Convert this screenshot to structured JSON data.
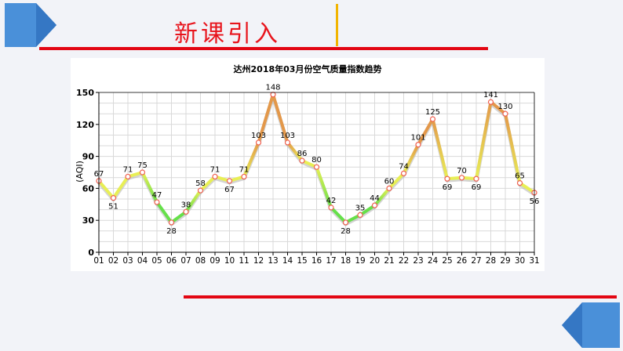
{
  "slide": {
    "title": "新课引入",
    "colors": {
      "title": "#e8141c",
      "rule": "#e30613",
      "divider": "#f2b400",
      "corner": "#4a90d9"
    }
  },
  "chart_data": {
    "type": "line",
    "title": "达州2018年03月份空气质量指数趋势",
    "xlabel": "",
    "ylabel": "(AQI)",
    "ylim": [
      0,
      150
    ],
    "yticks": [
      0,
      30,
      60,
      90,
      120,
      150
    ],
    "grid": true,
    "categories": [
      "01",
      "02",
      "03",
      "04",
      "05",
      "06",
      "07",
      "08",
      "09",
      "10",
      "11",
      "12",
      "13",
      "14",
      "15",
      "16",
      "17",
      "18",
      "19",
      "20",
      "21",
      "22",
      "23",
      "24",
      "25",
      "26",
      "27",
      "28",
      "29",
      "30",
      "31"
    ],
    "series": [
      {
        "values": [
          67,
          51,
          71,
          75,
          47,
          28,
          38,
          58,
          71,
          67,
          71,
          103,
          148,
          103,
          86,
          80,
          42,
          28,
          35,
          44,
          60,
          74,
          101,
          125,
          69,
          70,
          69,
          141,
          130,
          65,
          56
        ]
      }
    ],
    "colors": {
      "good": "#66e04a",
      "moderate": "#e8ef56",
      "unhealthy_sensitive": "#e3984a",
      "marker": "#f06050"
    }
  }
}
